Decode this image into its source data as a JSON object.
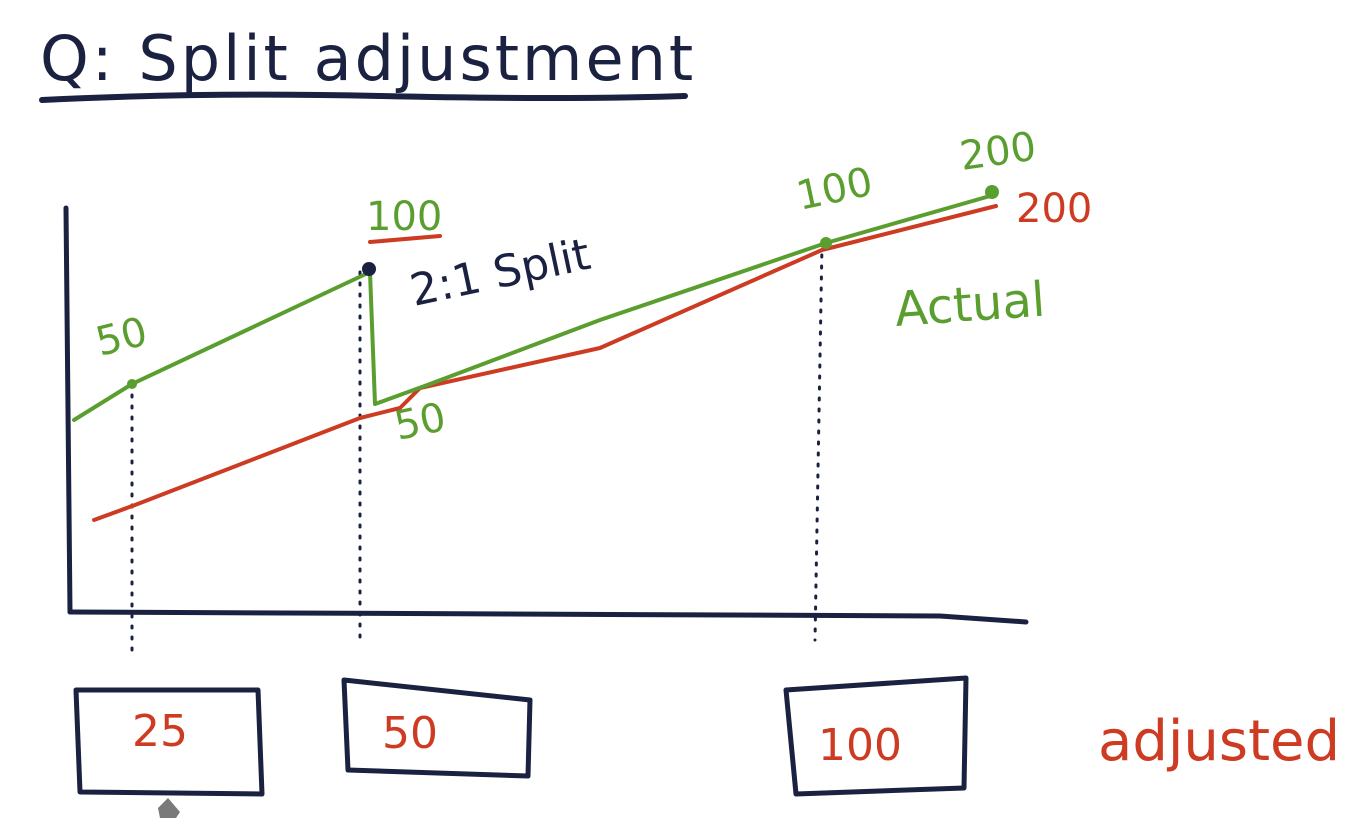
{
  "title": "Q: Split adjustment",
  "colors": {
    "ink": "#1b2140",
    "actual": "#5a9e2f",
    "adjusted": "#cc3b22"
  },
  "split_label": "2:1 Split",
  "actual": {
    "legend": "Actual",
    "point_labels": [
      "50",
      "100",
      "50",
      "100",
      "200"
    ]
  },
  "adjusted": {
    "legend": "adjusted",
    "end_label": "200",
    "answers": [
      "25",
      "50",
      "100"
    ]
  }
}
